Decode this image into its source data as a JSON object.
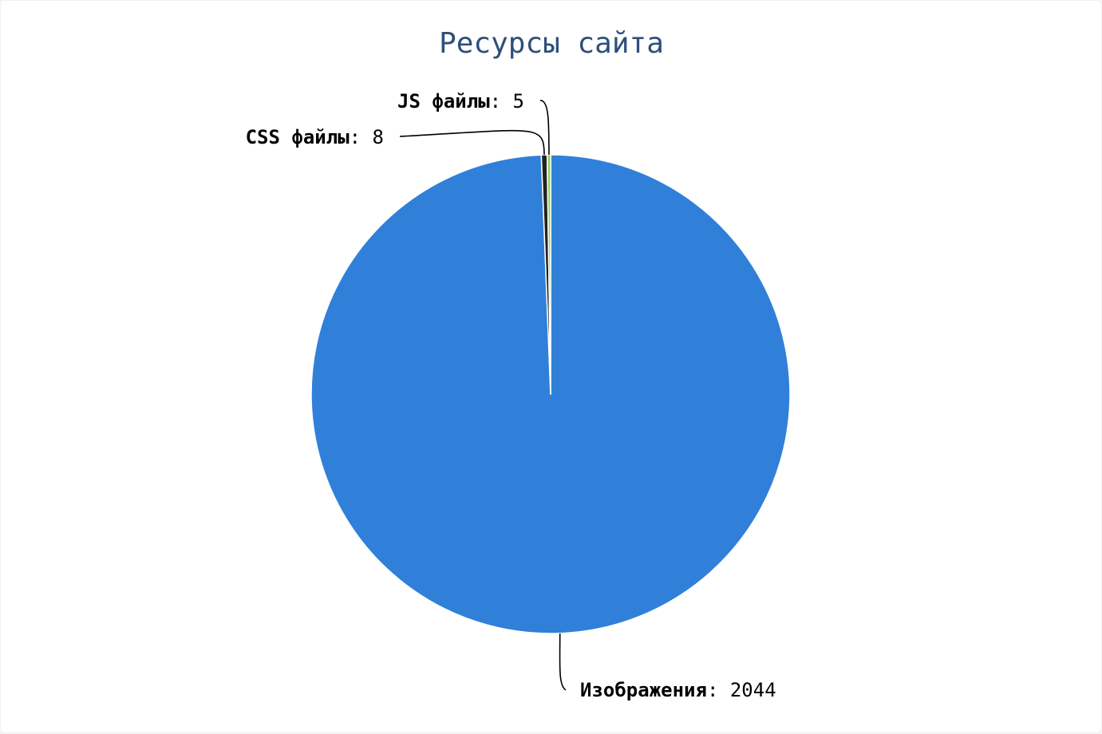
{
  "chart_data": {
    "type": "pie",
    "title": "Ресурсы сайта",
    "slices": [
      {
        "name": "Изображения",
        "value": 2044,
        "color": "#3080d9"
      },
      {
        "name": "CSS файлы",
        "value": 8,
        "color": "#222222"
      },
      {
        "name": "JS файлы",
        "value": 5,
        "color": "#8fd45c"
      }
    ],
    "label_separator": ":"
  }
}
